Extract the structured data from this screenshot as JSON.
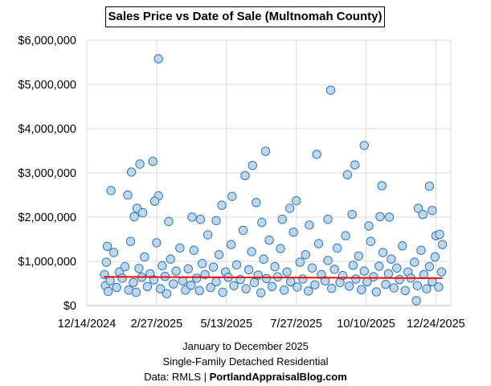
{
  "chart_data": {
    "type": "scatter",
    "title": "Sales Price vs Date of Sale (Multnomah County)",
    "xlabel": "",
    "ylabel": "",
    "footer": [
      "January to December 2025",
      "Single-Family Detached Residential"
    ],
    "source_prefix": "Data: RMLS | ",
    "source_site": "PortlandAppraisalBlog.com",
    "x_ticks": [
      "12/14/2024",
      "2/27/2025",
      "5/13/2025",
      "7/27/2025",
      "10/10/2025",
      "12/24/2025"
    ],
    "xlim": [
      "2024-12-14",
      "2026-01-09"
    ],
    "y_ticks": [
      "$0",
      "$1,000,000",
      "$2,000,000",
      "$3,000,000",
      "$4,000,000",
      "$5,000,000",
      "$6,000,000"
    ],
    "ylim": [
      0,
      6000000
    ],
    "grid": true,
    "colors": {
      "marker_fill": "#bdd7ee",
      "marker_edge": "#2e75b6",
      "trend": "#ff0000",
      "grid": "#d9d9d9"
    },
    "trendline": {
      "type": "linear",
      "start": [
        "2025-01-01",
        650000
      ],
      "end": [
        "2025-12-31",
        620000
      ]
    },
    "points": [
      [
        "2025-03-01",
        5580000
      ],
      [
        "2025-09-02",
        4870000
      ],
      [
        "2025-10-08",
        3620000
      ],
      [
        "2025-06-24",
        3490000
      ],
      [
        "2025-08-18",
        3420000
      ],
      [
        "2025-09-28",
        3180000
      ],
      [
        "2025-09-20",
        2960000
      ],
      [
        "2025-02-23",
        3260000
      ],
      [
        "2025-02-09",
        3200000
      ],
      [
        "2025-01-31",
        3020000
      ],
      [
        "2025-01-09",
        2600000
      ],
      [
        "2025-06-10",
        3170000
      ],
      [
        "2025-06-02",
        2940000
      ],
      [
        "2025-05-19",
        2470000
      ],
      [
        "2025-10-27",
        2710000
      ],
      [
        "2025-12-17",
        2700000
      ],
      [
        "2025-12-20",
        2150000
      ],
      [
        "2025-03-01",
        2480000
      ],
      [
        "2025-02-25",
        2360000
      ],
      [
        "2025-01-27",
        2500000
      ],
      [
        "2025-07-27",
        2370000
      ],
      [
        "2025-05-08",
        2270000
      ],
      [
        "2025-06-14",
        2330000
      ],
      [
        "2025-02-06",
        2200000
      ],
      [
        "2025-02-12",
        2100000
      ],
      [
        "2025-02-03",
        2010000
      ],
      [
        "2025-04-06",
        2000000
      ],
      [
        "2025-04-15",
        1950000
      ],
      [
        "2025-05-02",
        1920000
      ],
      [
        "2025-06-20",
        1880000
      ],
      [
        "2025-07-12",
        1950000
      ],
      [
        "2025-07-20",
        2200000
      ],
      [
        "2025-08-10",
        1820000
      ],
      [
        "2025-08-30",
        1950000
      ],
      [
        "2025-09-25",
        2060000
      ],
      [
        "2025-10-13",
        1800000
      ],
      [
        "2025-10-25",
        2010000
      ],
      [
        "2025-11-04",
        2000000
      ],
      [
        "2025-12-05",
        2200000
      ],
      [
        "2025-12-10",
        2060000
      ],
      [
        "2025-12-24",
        1580000
      ],
      [
        "2025-12-28",
        1610000
      ],
      [
        "2025-03-12",
        1900000
      ],
      [
        "2025-01-05",
        1340000
      ],
      [
        "2025-12-03",
        110000
      ],
      [
        "2025-01-02",
        700000
      ],
      [
        "2025-01-03",
        450000
      ],
      [
        "2025-01-04",
        980000
      ],
      [
        "2025-01-06",
        320000
      ],
      [
        "2025-01-08",
        560000
      ],
      [
        "2025-01-12",
        1200000
      ],
      [
        "2025-01-15",
        410000
      ],
      [
        "2025-01-18",
        760000
      ],
      [
        "2025-01-21",
        620000
      ],
      [
        "2025-01-24",
        880000
      ],
      [
        "2025-01-28",
        350000
      ],
      [
        "2025-01-30",
        1450000
      ],
      [
        "2025-02-02",
        520000
      ],
      [
        "2025-02-05",
        300000
      ],
      [
        "2025-02-08",
        840000
      ],
      [
        "2025-02-11",
        640000
      ],
      [
        "2025-02-14",
        1100000
      ],
      [
        "2025-02-17",
        430000
      ],
      [
        "2025-02-20",
        720000
      ],
      [
        "2025-02-24",
        580000
      ],
      [
        "2025-02-27",
        1420000
      ],
      [
        "2025-03-03",
        380000
      ],
      [
        "2025-03-05",
        900000
      ],
      [
        "2025-03-08",
        660000
      ],
      [
        "2025-03-10",
        270000
      ],
      [
        "2025-03-14",
        1050000
      ],
      [
        "2025-03-17",
        490000
      ],
      [
        "2025-03-20",
        780000
      ],
      [
        "2025-03-24",
        1300000
      ],
      [
        "2025-03-27",
        560000
      ],
      [
        "2025-03-30",
        350000
      ],
      [
        "2025-04-02",
        830000
      ],
      [
        "2025-04-05",
        460000
      ],
      [
        "2025-04-08",
        1250000
      ],
      [
        "2025-04-11",
        620000
      ],
      [
        "2025-04-14",
        340000
      ],
      [
        "2025-04-17",
        950000
      ],
      [
        "2025-04-20",
        700000
      ],
      [
        "2025-04-23",
        1600000
      ],
      [
        "2025-04-26",
        410000
      ],
      [
        "2025-04-29",
        870000
      ],
      [
        "2025-05-02",
        540000
      ],
      [
        "2025-05-05",
        1150000
      ],
      [
        "2025-05-09",
        300000
      ],
      [
        "2025-05-12",
        760000
      ],
      [
        "2025-05-15",
        640000
      ],
      [
        "2025-05-18",
        1380000
      ],
      [
        "2025-05-21",
        450000
      ],
      [
        "2025-05-24",
        920000
      ],
      [
        "2025-05-28",
        590000
      ],
      [
        "2025-05-31",
        1700000
      ],
      [
        "2025-06-03",
        380000
      ],
      [
        "2025-06-06",
        810000
      ],
      [
        "2025-06-09",
        1220000
      ],
      [
        "2025-06-12",
        520000
      ],
      [
        "2025-06-16",
        690000
      ],
      [
        "2025-06-19",
        290000
      ],
      [
        "2025-06-22",
        1050000
      ],
      [
        "2025-06-25",
        610000
      ],
      [
        "2025-06-28",
        1480000
      ],
      [
        "2025-07-01",
        430000
      ],
      [
        "2025-07-04",
        880000
      ],
      [
        "2025-07-07",
        650000
      ],
      [
        "2025-07-10",
        1290000
      ],
      [
        "2025-07-14",
        350000
      ],
      [
        "2025-07-17",
        760000
      ],
      [
        "2025-07-21",
        540000
      ],
      [
        "2025-07-24",
        1660000
      ],
      [
        "2025-07-28",
        420000
      ],
      [
        "2025-07-31",
        980000
      ],
      [
        "2025-08-03",
        600000
      ],
      [
        "2025-08-06",
        1150000
      ],
      [
        "2025-08-09",
        330000
      ],
      [
        "2025-08-13",
        850000
      ],
      [
        "2025-08-16",
        470000
      ],
      [
        "2025-08-20",
        1400000
      ],
      [
        "2025-08-23",
        700000
      ],
      [
        "2025-08-27",
        560000
      ],
      [
        "2025-08-30",
        1020000
      ],
      [
        "2025-09-03",
        390000
      ],
      [
        "2025-09-06",
        820000
      ],
      [
        "2025-09-09",
        1300000
      ],
      [
        "2025-09-12",
        520000
      ],
      [
        "2025-09-15",
        680000
      ],
      [
        "2025-09-18",
        1580000
      ],
      [
        "2025-09-22",
        440000
      ],
      [
        "2025-09-26",
        910000
      ],
      [
        "2025-09-29",
        600000
      ],
      [
        "2025-10-02",
        1120000
      ],
      [
        "2025-10-05",
        360000
      ],
      [
        "2025-10-08",
        780000
      ],
      [
        "2025-10-11",
        540000
      ],
      [
        "2025-10-15",
        1450000
      ],
      [
        "2025-10-18",
        650000
      ],
      [
        "2025-10-21",
        310000
      ],
      [
        "2025-10-24",
        890000
      ],
      [
        "2025-10-28",
        1200000
      ],
      [
        "2025-10-31",
        480000
      ],
      [
        "2025-11-03",
        720000
      ],
      [
        "2025-11-06",
        1050000
      ],
      [
        "2025-11-09",
        400000
      ],
      [
        "2025-11-12",
        850000
      ],
      [
        "2025-11-15",
        590000
      ],
      [
        "2025-11-18",
        1350000
      ],
      [
        "2025-11-21",
        340000
      ],
      [
        "2025-11-24",
        760000
      ],
      [
        "2025-11-27",
        620000
      ],
      [
        "2025-12-01",
        980000
      ],
      [
        "2025-12-04",
        450000
      ],
      [
        "2025-12-08",
        1250000
      ],
      [
        "2025-12-11",
        700000
      ],
      [
        "2025-12-14",
        380000
      ],
      [
        "2025-12-17",
        880000
      ],
      [
        "2025-12-20",
        540000
      ],
      [
        "2025-12-23",
        1100000
      ],
      [
        "2025-12-27",
        420000
      ],
      [
        "2025-12-30",
        760000
      ],
      [
        "2025-12-31",
        1380000
      ]
    ]
  }
}
